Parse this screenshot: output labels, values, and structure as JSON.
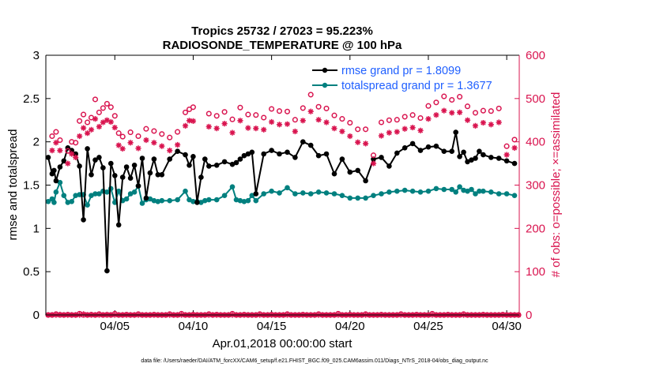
{
  "chart_data": {
    "type": "line",
    "title": "Tropics 25732 / 27023 = 95.223%",
    "subtitle": "RADIOSONDE_TEMPERATURE @ 100 hPa",
    "xlabel": "Apr.01,2018 00:00:00 start",
    "ylabel": "rmse and totalspread",
    "ylabel_right": "# of obs: o=possible; ×=assimilated",
    "footnote": "data file: /Users/raeder/DAI/ATM_forcXX/CAM6_setup/f.e21.FHIST_BGC.f09_025.CAM6assim.011/Diags_NTrS_2018-04/obs_diag_output.nc",
    "xlim": [
      0.6,
      30.8
    ],
    "ylim": [
      0,
      3
    ],
    "ylim_right": [
      0,
      600
    ],
    "xticks": [
      {
        "value": 5,
        "label": "04/05"
      },
      {
        "value": 10,
        "label": "04/10"
      },
      {
        "value": 15,
        "label": "04/15"
      },
      {
        "value": 20,
        "label": "04/20"
      },
      {
        "value": 25,
        "label": "04/25"
      },
      {
        "value": 30,
        "label": "04/30"
      }
    ],
    "yticks": [
      "0",
      "0.5",
      "1",
      "1.5",
      "2",
      "2.5",
      "3"
    ],
    "yticks_right": [
      "0",
      "100",
      "200",
      "300",
      "400",
      "500",
      "600"
    ],
    "legend": [
      {
        "label": "rmse grand pr = 1.8099",
        "color": "#000000"
      },
      {
        "label": "totalspread grand pr = 1.3677",
        "color": "#00807f"
      }
    ],
    "colors": {
      "rmse": "#000000",
      "spread": "#00807f",
      "obs": "#d9144f"
    },
    "series": [
      {
        "name": "rmse",
        "x": [
          0.75,
          1,
          1.125,
          1.25,
          1.5,
          1.75,
          2,
          2.25,
          2.5,
          2.75,
          3,
          3.25,
          3.5,
          3.75,
          4,
          4.25,
          4.5,
          4.75,
          5,
          5.25,
          5.5,
          5.75,
          6,
          6.25,
          6.5,
          6.75,
          7,
          7.25,
          7.5,
          7.75,
          8,
          8.5,
          9,
          9.5,
          9.75,
          10,
          10.25,
          10.5,
          10.75,
          11,
          11.5,
          12,
          12.5,
          12.75,
          13,
          13.25,
          13.5,
          13.75,
          14,
          14.5,
          15,
          15.5,
          16,
          16.5,
          17,
          17.5,
          18,
          18.5,
          19,
          19.5,
          20,
          20.5,
          21,
          21.5,
          22,
          22.5,
          23,
          23.5,
          24,
          24.5,
          25,
          25.5,
          26,
          26.5,
          26.75,
          27,
          27.25,
          27.5,
          27.75,
          28,
          28.25,
          28.5,
          29,
          29.5,
          30,
          30.5
        ],
        "values": [
          1.82,
          1.63,
          1.67,
          1.55,
          1.71,
          1.78,
          1.93,
          1.9,
          1.86,
          1.72,
          1.1,
          1.92,
          1.62,
          1.79,
          1.82,
          1.7,
          0.51,
          1.75,
          1.61,
          1.04,
          1.59,
          1.71,
          1.58,
          1.73,
          1.49,
          1.81,
          1.35,
          1.64,
          1.8,
          1.62,
          1.62,
          1.8,
          1.89,
          1.85,
          1.73,
          1.83,
          1.3,
          1.59,
          1.8,
          1.72,
          1.73,
          1.77,
          1.74,
          1.76,
          1.8,
          1.84,
          1.86,
          1.88,
          1.4,
          1.86,
          1.9,
          1.86,
          1.88,
          1.82,
          2,
          1.96,
          1.84,
          1.86,
          1.63,
          1.8,
          1.65,
          1.67,
          1.55,
          1.8,
          1.82,
          1.72,
          1.87,
          1.93,
          1.98,
          1.9,
          1.94,
          1.95,
          1.89,
          1.89,
          2.11,
          1.83,
          1.88,
          1.77,
          1.79,
          1.81,
          1.89,
          1.85,
          1.82,
          1.81,
          1.78,
          1.75
        ]
      },
      {
        "name": "totalspread",
        "x": [
          0.75,
          1,
          1.125,
          1.25,
          1.5,
          1.75,
          2,
          2.25,
          2.5,
          2.75,
          3,
          3.25,
          3.5,
          3.75,
          4,
          4.25,
          4.5,
          4.75,
          5,
          5.25,
          5.5,
          5.75,
          6,
          6.25,
          6.5,
          6.75,
          7,
          7.25,
          7.5,
          7.75,
          8,
          8.5,
          9,
          9.5,
          9.75,
          10,
          10.25,
          10.5,
          10.75,
          11,
          11.5,
          12,
          12.5,
          12.75,
          13,
          13.25,
          13.5,
          13.75,
          14,
          14.5,
          15,
          15.5,
          16,
          16.5,
          17,
          17.5,
          18,
          18.5,
          19,
          19.5,
          20,
          20.5,
          21,
          21.5,
          22,
          22.5,
          23,
          23.5,
          24,
          24.5,
          25,
          25.5,
          26,
          26.5,
          26.75,
          27,
          27.25,
          27.5,
          27.75,
          28,
          28.25,
          28.5,
          29,
          29.5,
          30,
          30.5
        ],
        "values": [
          1.31,
          1.34,
          1.3,
          1.42,
          1.53,
          1.38,
          1.3,
          1.31,
          1.38,
          1.39,
          1.39,
          1.27,
          1.38,
          1.4,
          1.4,
          1.43,
          1.42,
          1.46,
          1.3,
          1.43,
          1.32,
          1.34,
          1.4,
          1.42,
          1.49,
          1.29,
          1.33,
          1.34,
          1.32,
          1.31,
          1.32,
          1.32,
          1.33,
          1.43,
          1.33,
          1.31,
          1.31,
          1.3,
          1.32,
          1.33,
          1.33,
          1.38,
          1.48,
          1.33,
          1.32,
          1.31,
          1.32,
          1.38,
          1.32,
          1.4,
          1.43,
          1.41,
          1.47,
          1.4,
          1.41,
          1.4,
          1.42,
          1.41,
          1.4,
          1.38,
          1.35,
          1.35,
          1.35,
          1.38,
          1.4,
          1.42,
          1.43,
          1.44,
          1.43,
          1.42,
          1.43,
          1.46,
          1.45,
          1.45,
          1.42,
          1.48,
          1.44,
          1.43,
          1.45,
          1.4,
          1.43,
          1.43,
          1.42,
          1.4,
          1.4,
          1.38
        ]
      },
      {
        "name": "obs possible",
        "x": [
          1,
          1.25,
          1.5,
          2,
          2.25,
          2.5,
          2.75,
          3,
          3.25,
          3.5,
          3.75,
          4,
          4.25,
          4.5,
          4.75,
          5,
          5.25,
          5.5,
          6,
          6.5,
          7,
          7.5,
          8,
          8.5,
          9,
          9.5,
          9.75,
          10,
          11,
          11.5,
          12,
          12.5,
          13,
          13.5,
          14,
          14.5,
          15,
          15.5,
          16,
          16.5,
          17,
          17.5,
          18,
          18.5,
          19,
          19.5,
          20,
          20.5,
          21,
          21.5,
          22,
          22.5,
          23,
          23.5,
          24,
          24.5,
          25,
          25.5,
          26,
          26.5,
          27,
          27.5,
          28,
          28.5,
          29,
          29.5,
          30,
          30.5
        ],
        "values": [
          413,
          423,
          404,
          379,
          400,
          398,
          448,
          463,
          445,
          456,
          498,
          468,
          478,
          488,
          480,
          460,
          420,
          412,
          422,
          413,
          430,
          425,
          418,
          410,
          423,
          468,
          475,
          480,
          465,
          460,
          469,
          452,
          479,
          463,
          462,
          456,
          476,
          471,
          470,
          451,
          478,
          509,
          481,
          477,
          461,
          453,
          444,
          429,
          429,
          369,
          445,
          450,
          451,
          458,
          462,
          455,
          483,
          491,
          505,
          497,
          504,
          482,
          467,
          472,
          471,
          477,
          390,
          405
        ]
      },
      {
        "name": "obs assimilated",
        "x": [
          1,
          1.25,
          1.5,
          2,
          2.25,
          2.5,
          2.75,
          3,
          3.25,
          3.5,
          3.75,
          4,
          4.25,
          4.5,
          4.75,
          5,
          5.25,
          5.5,
          6,
          6.5,
          7,
          7.5,
          8,
          8.5,
          9,
          9.5,
          9.75,
          10,
          11,
          11.5,
          12,
          12.5,
          13,
          13.5,
          14,
          14.5,
          15,
          15.5,
          16,
          16.5,
          17,
          17.5,
          18,
          18.5,
          19,
          19.5,
          20,
          20.5,
          21,
          21.5,
          22,
          22.5,
          23,
          23.5,
          24,
          24.5,
          25,
          25.5,
          26,
          26.5,
          27,
          27.5,
          28,
          28.5,
          29,
          29.5,
          30,
          30.5
        ],
        "values": [
          380,
          398,
          380,
          350,
          372,
          364,
          413,
          432,
          420,
          428,
          453,
          435,
          445,
          450,
          446,
          433,
          392,
          384,
          398,
          385,
          404,
          398,
          390,
          380,
          393,
          437,
          449,
          448,
          435,
          431,
          442,
          421,
          449,
          432,
          431,
          428,
          446,
          440,
          441,
          424,
          449,
          470,
          451,
          445,
          431,
          424,
          413,
          399,
          396,
          350,
          414,
          421,
          423,
          430,
          433,
          426,
          453,
          462,
          472,
          467,
          468,
          450,
          437,
          444,
          440,
          445,
          370,
          386
        ]
      },
      {
        "name": "obs zero possible",
        "x": [
          0.75,
          1,
          1.25,
          1.5,
          1.75,
          2,
          2.25,
          2.5,
          2.75,
          3,
          3.25,
          3.5,
          3.75,
          4,
          4.25,
          4.5,
          4.75,
          5,
          5.25,
          5.5,
          5.75,
          6,
          6.25,
          6.5,
          6.75,
          7,
          7.25,
          7.5,
          7.75,
          8,
          8.25,
          8.5,
          8.75,
          9,
          9.25,
          9.5,
          9.75,
          10,
          10.25,
          10.5,
          10.75,
          11,
          11.25,
          11.5,
          11.75,
          12,
          12.25,
          12.5,
          12.75,
          13,
          13.25,
          13.5,
          13.75,
          14,
          14.25,
          14.5,
          14.75,
          15,
          15.25,
          15.5,
          15.75,
          16,
          16.25,
          16.5,
          16.75,
          17,
          17.25,
          17.5,
          17.75,
          18,
          18.25,
          18.5,
          18.75,
          19,
          19.25,
          19.5,
          19.75,
          20,
          20.25,
          20.5,
          20.75,
          21,
          21.25,
          21.5,
          21.75,
          22,
          22.25,
          22.5,
          22.75,
          23,
          23.25,
          23.5,
          23.75,
          24,
          24.25,
          24.5,
          24.75,
          25,
          25.25,
          25.5,
          25.75,
          26,
          26.25,
          26.5,
          26.75,
          27,
          27.25,
          27.5,
          27.75,
          28,
          28.25,
          28.5,
          28.75,
          29,
          29.25,
          29.5,
          29.75,
          30,
          30.25,
          30.5,
          30.75
        ],
        "values": [
          0,
          0,
          2,
          0,
          0,
          1,
          0,
          0,
          3,
          0,
          0,
          1,
          0,
          2,
          0,
          0,
          0,
          3,
          0,
          0,
          1,
          0,
          0,
          2,
          0,
          0,
          0,
          1,
          0,
          0,
          0,
          2,
          0,
          0,
          3,
          0,
          0,
          1,
          0,
          0,
          0,
          2,
          0,
          1,
          0,
          0,
          0,
          3,
          0,
          0,
          1,
          0,
          0,
          0,
          2,
          0,
          0,
          1,
          0,
          0,
          0,
          2,
          0,
          0,
          0,
          1,
          0,
          0,
          0,
          2,
          0,
          0,
          0,
          0,
          3,
          0,
          0,
          1,
          0,
          0,
          0,
          2,
          0,
          0,
          0,
          1,
          0,
          0,
          0,
          0,
          2,
          0,
          0,
          0,
          1,
          0,
          0,
          0,
          3,
          0,
          0,
          0,
          1,
          0,
          0,
          0,
          2,
          0,
          0,
          0,
          0,
          1,
          0,
          0,
          0,
          0,
          1,
          0,
          0,
          0,
          0
        ]
      },
      {
        "name": "obs zero assimilated",
        "x": [
          0.75,
          1,
          1.25,
          1.5,
          1.75,
          2,
          2.25,
          2.5,
          2.75,
          3,
          3.25,
          3.5,
          3.75,
          4,
          4.25,
          4.5,
          4.75,
          5,
          5.25,
          5.5,
          5.75,
          6,
          6.25,
          6.5,
          6.75,
          7,
          7.25,
          7.5,
          7.75,
          8,
          8.25,
          8.5,
          8.75,
          9,
          9.25,
          9.5,
          9.75,
          10,
          10.25,
          10.5,
          10.75,
          11,
          11.25,
          11.5,
          11.75,
          12,
          12.25,
          12.5,
          12.75,
          13,
          13.25,
          13.5,
          13.75,
          14,
          14.25,
          14.5,
          14.75,
          15,
          15.25,
          15.5,
          15.75,
          16,
          16.25,
          16.5,
          16.75,
          17,
          17.25,
          17.5,
          17.75,
          18,
          18.25,
          18.5,
          18.75,
          19,
          19.25,
          19.5,
          19.75,
          20,
          20.25,
          20.5,
          20.75,
          21,
          21.25,
          21.5,
          21.75,
          22,
          22.25,
          22.5,
          22.75,
          23,
          23.25,
          23.5,
          23.75,
          24,
          24.25,
          24.5,
          24.75,
          25,
          25.25,
          25.5,
          25.75,
          26,
          26.25,
          26.5,
          26.75,
          27,
          27.25,
          27.5,
          27.75,
          28,
          28.25,
          28.5,
          28.75,
          29,
          29.25,
          29.5,
          29.75,
          30,
          30.25,
          30.5,
          30.75
        ],
        "values": [
          0,
          0,
          0,
          1,
          0,
          0,
          0,
          0,
          0,
          2,
          0,
          0,
          0,
          0,
          0,
          1,
          0,
          0,
          0,
          0,
          0,
          0,
          0,
          0,
          0,
          0,
          0,
          0,
          0,
          0,
          0,
          0,
          0,
          0,
          0,
          0,
          0,
          0,
          0,
          0,
          0,
          0,
          0,
          0,
          0,
          0,
          0,
          0,
          0,
          0,
          0,
          0,
          0,
          0,
          0,
          0,
          0,
          0,
          0,
          0,
          0,
          0,
          0,
          0,
          0,
          0,
          0,
          0,
          0,
          0,
          0,
          0,
          0,
          0,
          0,
          0,
          0,
          0,
          0,
          0,
          0,
          0,
          0,
          0,
          0,
          0,
          0,
          0,
          0,
          0,
          0,
          0,
          0,
          0,
          0,
          0,
          0,
          0,
          0,
          0,
          0,
          0,
          0,
          0,
          0,
          0,
          0,
          0,
          0,
          0,
          0,
          0,
          0,
          0,
          0,
          0,
          0,
          0,
          0,
          0,
          0
        ]
      }
    ]
  }
}
